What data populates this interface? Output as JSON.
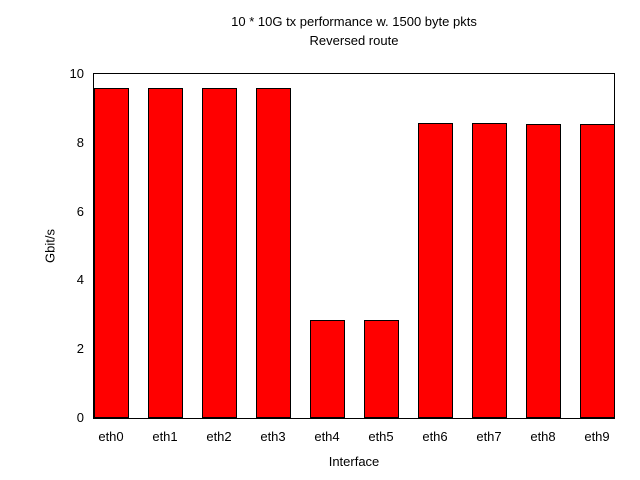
{
  "chart_data": {
    "type": "bar",
    "title_line1": "10 * 10G tx performance w. 1500 byte pkts",
    "title_line2": "Reversed route",
    "categories": [
      "eth0",
      "eth1",
      "eth2",
      "eth3",
      "eth4",
      "eth5",
      "eth6",
      "eth7",
      "eth8",
      "eth9"
    ],
    "values": [
      9.59,
      9.59,
      9.59,
      9.59,
      2.86,
      2.86,
      8.58,
      8.58,
      8.54,
      8.54
    ],
    "xlabel": "Interface",
    "ylabel": "Gbit/s",
    "ylim": [
      0,
      10
    ],
    "yticks": [
      0,
      2,
      4,
      6,
      8,
      10
    ],
    "grid": false,
    "legend_position": "none",
    "bar_fill_color": "#ff0000",
    "bar_border_color": "#000000",
    "axis_color": "#000000",
    "background_color": "#ffffff"
  }
}
